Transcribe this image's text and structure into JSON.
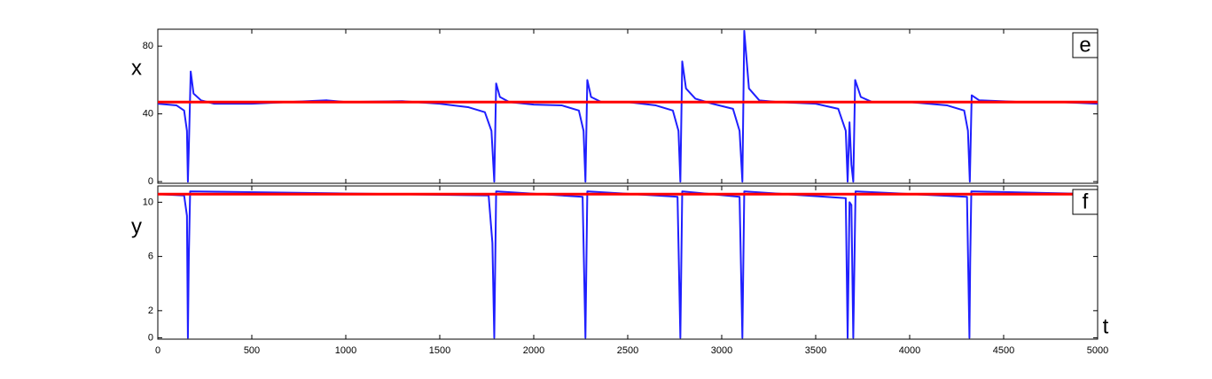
{
  "chart_data": [
    {
      "type": "line",
      "ylabel": "x",
      "annotation": "e",
      "ylim": [
        -1,
        90
      ],
      "yticks": [
        0,
        40,
        80
      ],
      "xlim": [
        0,
        5000
      ],
      "series": [
        {
          "color": "#1f1fff",
          "x": [
            0,
            100,
            140,
            155,
            160,
            165,
            175,
            190,
            230,
            300,
            500,
            900,
            1000,
            1300,
            1500,
            1650,
            1740,
            1775,
            1790,
            1800,
            1820,
            1870,
            2000,
            2150,
            2240,
            2265,
            2275,
            2285,
            2305,
            2360,
            2500,
            2650,
            2740,
            2770,
            2780,
            2790,
            2810,
            2860,
            2950,
            3060,
            3095,
            3110,
            3120,
            3145,
            3200,
            3300,
            3500,
            3620,
            3660,
            3670,
            3680,
            3690,
            3700,
            3710,
            3740,
            3800,
            4000,
            4200,
            4290,
            4310,
            4320,
            4330,
            4370,
            4600,
            4800,
            5000
          ],
          "values": [
            46,
            45,
            42,
            30,
            0,
            20,
            65,
            52,
            48,
            46,
            46,
            48,
            47,
            47.5,
            46,
            44,
            41,
            30,
            0,
            58,
            50,
            47,
            45.5,
            45,
            42,
            30,
            0,
            60,
            50,
            47,
            47,
            45,
            42,
            30,
            0,
            71,
            55,
            49,
            46,
            43,
            30,
            0,
            89,
            55,
            48,
            47,
            46,
            43,
            30,
            0,
            35,
            10,
            0,
            60,
            50,
            47,
            47,
            45,
            42,
            30,
            0,
            51,
            48,
            47,
            47,
            46
          ]
        },
        {
          "color": "#ff0000",
          "x": [
            0,
            5000
          ],
          "values": [
            47,
            47
          ]
        }
      ]
    },
    {
      "type": "line",
      "ylabel": "y",
      "annotation": "f",
      "xlabel": "t",
      "ylim": [
        -0.1,
        11.2
      ],
      "yticks": [
        0,
        2,
        6,
        10
      ],
      "xlim": [
        0,
        5000
      ],
      "xticks": [
        0,
        500,
        1000,
        1500,
        2000,
        2500,
        3000,
        3500,
        4000,
        4500,
        5000
      ],
      "series": [
        {
          "color": "#1f1fff",
          "x": [
            0,
            140,
            155,
            160,
            165,
            172,
            1760,
            1780,
            1790,
            1800,
            2260,
            2275,
            2285,
            2765,
            2780,
            2790,
            3095,
            3110,
            3120,
            3660,
            3670,
            3680,
            3690,
            3700,
            3712,
            4305,
            4318,
            4322,
            4328,
            5000
          ],
          "values": [
            10.6,
            10.5,
            9,
            0,
            6,
            10.8,
            10.5,
            7,
            0,
            10.8,
            10.4,
            0,
            10.8,
            10.4,
            0,
            10.8,
            10.4,
            0,
            10.8,
            10.3,
            0,
            10,
            9.8,
            0,
            10.8,
            10.4,
            0,
            5.5,
            10.8,
            10.6
          ]
        },
        {
          "color": "#ff0000",
          "x": [
            0,
            5000
          ],
          "values": [
            10.6,
            10.6
          ]
        }
      ]
    }
  ]
}
